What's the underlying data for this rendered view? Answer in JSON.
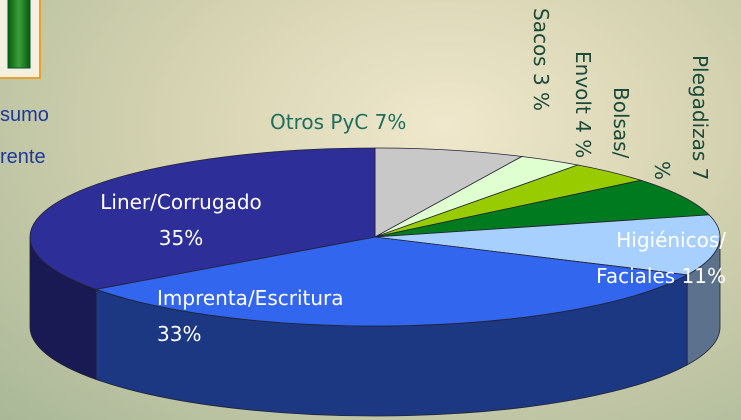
{
  "chart_data": {
    "type": "pie",
    "three_d": true,
    "categories": [
      "Otros PyC",
      "Sacos",
      "Bolsas/\nEnvolt",
      "Plegadizas",
      "Higiénicos/\nFaciales",
      "Imprenta/Escritura",
      "Liner/Corrugado"
    ],
    "values": [
      7,
      3,
      4,
      7,
      11,
      33,
      35
    ],
    "value_labels": [
      "7%",
      "3 %",
      "4 %",
      "7 %",
      "11%",
      "33%",
      "35%"
    ],
    "colors": [
      "#c8c8c8",
      "#e0ffd0",
      "#99cc00",
      "#007a1e",
      "#a8d0ff",
      "#3366ee",
      "#2e2e99"
    ]
  },
  "side_text": {
    "lines": [
      "sumo",
      "rente"
    ]
  }
}
